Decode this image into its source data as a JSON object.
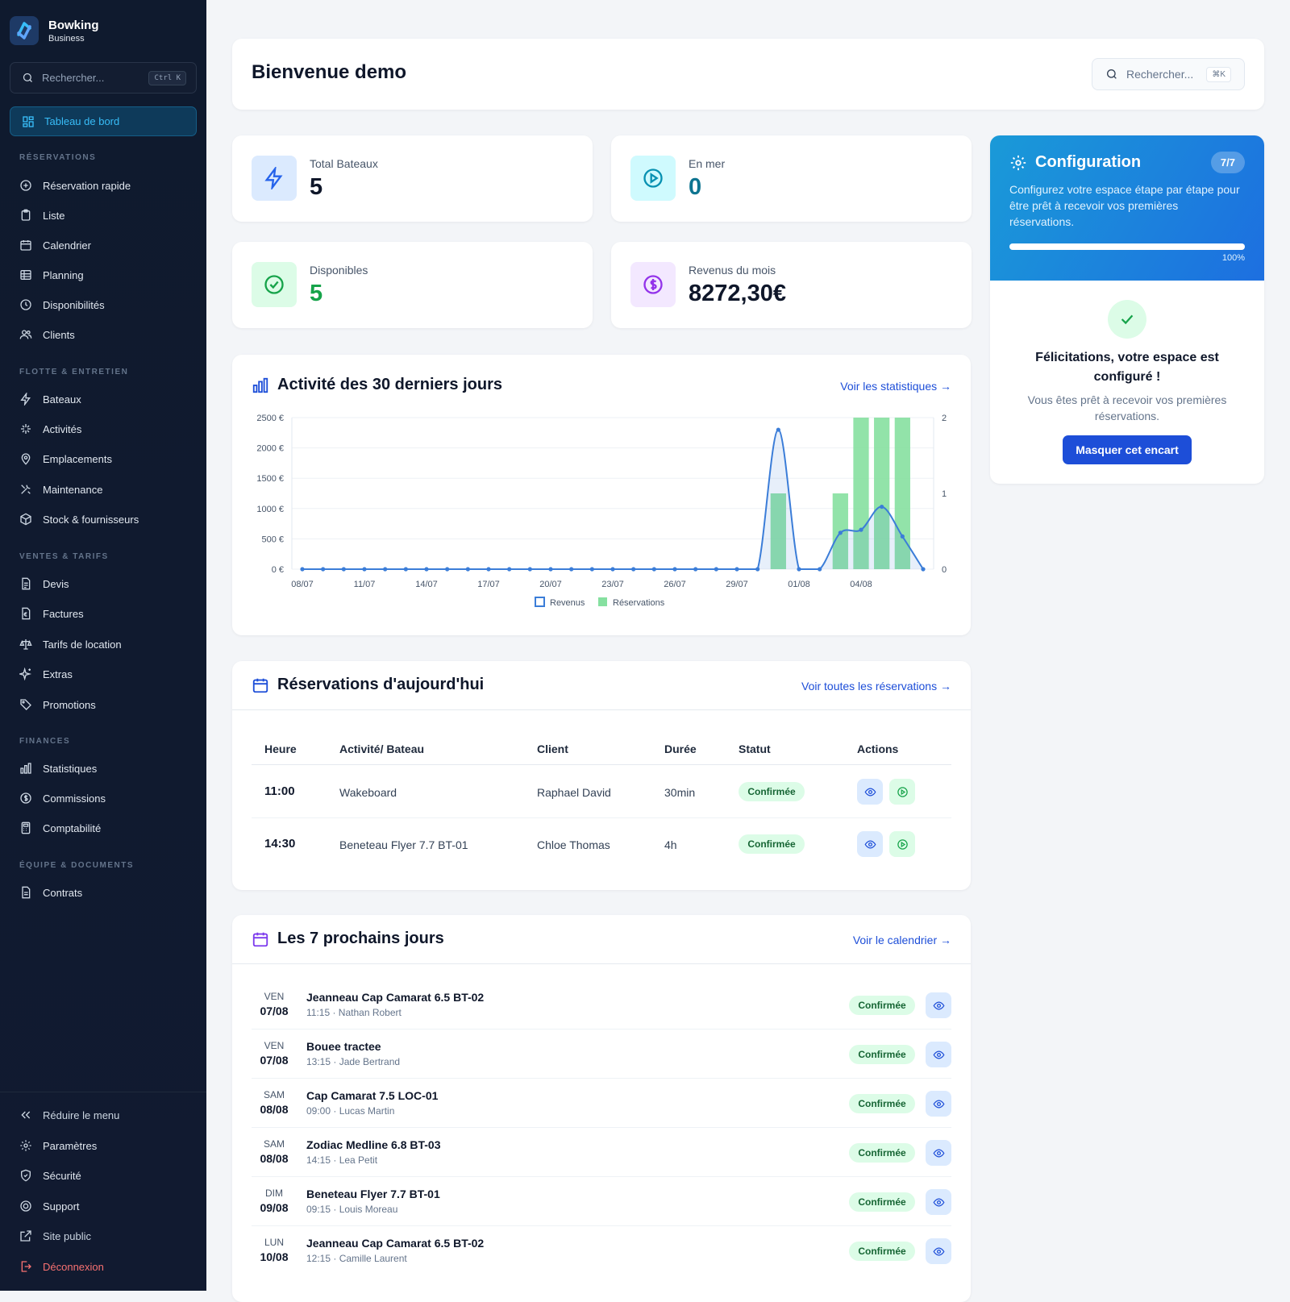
{
  "brand": {
    "name": "Bowking",
    "subtitle": "Business"
  },
  "sidebar": {
    "search_placeholder": "Rechercher...",
    "search_shortcut": "Ctrl K",
    "active_item": "Tableau de bord",
    "sections": {
      "reservations": "RÉSERVATIONS",
      "flotte": "FLOTTE & ENTRETIEN",
      "ventes": "VENTES & TARIFS",
      "finances": "FINANCES",
      "equipe": "ÉQUIPE & DOCUMENTS"
    },
    "items": {
      "reservation_rapide": "Réservation rapide",
      "liste": "Liste",
      "calendrier": "Calendrier",
      "planning": "Planning",
      "disponibilites": "Disponibilités",
      "clients": "Clients",
      "bateaux": "Bateaux",
      "activites": "Activités",
      "emplacements": "Emplacements",
      "maintenance": "Maintenance",
      "stock": "Stock & fournisseurs",
      "devis": "Devis",
      "factures": "Factures",
      "tarifs": "Tarifs de location",
      "extras": "Extras",
      "promotions": "Promotions",
      "statistiques": "Statistiques",
      "commissions": "Commissions",
      "comptabilite": "Comptabilité",
      "contrats": "Contrats"
    },
    "bottom": {
      "reduire": "Réduire le menu",
      "parametres": "Paramètres",
      "securite": "Sécurité",
      "support": "Support",
      "site_public": "Site public",
      "deconnexion": "Déconnexion"
    }
  },
  "header": {
    "title": "Bienvenue demo",
    "search_placeholder": "Rechercher...",
    "search_shortcut": "⌘K"
  },
  "stats": {
    "total_bateaux": {
      "label": "Total Bateaux",
      "value": "5"
    },
    "en_mer": {
      "label": "En mer",
      "value": "0"
    },
    "disponibles": {
      "label": "Disponibles",
      "value": "5"
    },
    "revenus": {
      "label": "Revenus du mois",
      "value": "8272,30€"
    }
  },
  "activity": {
    "title": "Activité des 30 derniers jours",
    "link": "Voir les statistiques →"
  },
  "chart_data": {
    "type": "bar",
    "title": "Activité des 30 derniers jours",
    "categories": [
      "08/07",
      "09/07",
      "10/07",
      "11/07",
      "12/07",
      "13/07",
      "14/07",
      "15/07",
      "16/07",
      "17/07",
      "18/07",
      "19/07",
      "20/07",
      "21/07",
      "22/07",
      "23/07",
      "24/07",
      "25/07",
      "26/07",
      "27/07",
      "28/07",
      "29/07",
      "30/07",
      "31/07",
      "01/08",
      "02/08",
      "03/08",
      "04/08",
      "05/08",
      "06/08",
      "07/08"
    ],
    "tick_labels": [
      "08/07",
      "11/07",
      "14/07",
      "17/07",
      "20/07",
      "23/07",
      "26/07",
      "29/07",
      "01/08",
      "04/08"
    ],
    "y_ticks_left": [
      "2500 €",
      "2000 €",
      "1500 €",
      "1000 €",
      "500 €",
      "0 €"
    ],
    "y_ticks_right": [
      "2",
      "1",
      "0"
    ],
    "ylim_left": [
      0,
      2500
    ],
    "ylim_right": [
      0,
      2
    ],
    "series": [
      {
        "name": "Revenus",
        "type": "line",
        "axis": "left",
        "color": "#3b7dd8",
        "values": [
          0,
          0,
          0,
          0,
          0,
          0,
          0,
          0,
          0,
          0,
          0,
          0,
          0,
          0,
          0,
          0,
          0,
          0,
          0,
          0,
          0,
          0,
          0,
          2300,
          0,
          0,
          600,
          650,
          1030,
          540,
          0
        ]
      },
      {
        "name": "Réservations",
        "type": "bar",
        "axis": "right",
        "color": "#86e0a0",
        "values": [
          0,
          0,
          0,
          0,
          0,
          0,
          0,
          0,
          0,
          0,
          0,
          0,
          0,
          0,
          0,
          0,
          0,
          0,
          0,
          0,
          0,
          0,
          0,
          1,
          0,
          0,
          1,
          2,
          2,
          2,
          0
        ]
      }
    ],
    "legend_placement": "bottom-center",
    "grid": true
  },
  "today": {
    "title": "Réservations d'aujourd'hui",
    "link": "Voir toutes les réservations →",
    "headers": [
      "Heure",
      "Activité/ Bateau",
      "Client",
      "Durée",
      "Statut",
      "Actions"
    ],
    "rows": [
      {
        "heure": "11:00",
        "activite": "Wakeboard",
        "client": "Raphael David",
        "duree": "30min",
        "statut": "Confirmée"
      },
      {
        "heure": "14:30",
        "activite": "Beneteau Flyer 7.7 BT-01",
        "client": "Chloe Thomas",
        "duree": "4h",
        "statut": "Confirmée"
      }
    ]
  },
  "next7": {
    "title": "Les 7 prochains jours",
    "link": "Voir le calendrier →",
    "items": [
      {
        "dow": "VEN",
        "date": "07/08",
        "title": "Jeanneau Cap Camarat 6.5 BT-02",
        "sub": "11:15 · Nathan Robert",
        "statut": "Confirmée"
      },
      {
        "dow": "VEN",
        "date": "07/08",
        "title": "Bouee tractee",
        "sub": "13:15 · Jade Bertrand",
        "statut": "Confirmée"
      },
      {
        "dow": "SAM",
        "date": "08/08",
        "title": "Cap Camarat 7.5 LOC-01",
        "sub": "09:00 · Lucas Martin",
        "statut": "Confirmée"
      },
      {
        "dow": "SAM",
        "date": "08/08",
        "title": "Zodiac Medline 6.8 BT-03",
        "sub": "14:15 · Lea Petit",
        "statut": "Confirmée"
      },
      {
        "dow": "DIM",
        "date": "09/08",
        "title": "Beneteau Flyer 7.7 BT-01",
        "sub": "09:15 · Louis Moreau",
        "statut": "Confirmée"
      },
      {
        "dow": "LUN",
        "date": "10/08",
        "title": "Jeanneau Cap Camarat 6.5 BT-02",
        "sub": "12:15 · Camille Laurent",
        "statut": "Confirmée"
      }
    ]
  },
  "config": {
    "title": "Configuration",
    "badge": "7/7",
    "desc": "Configurez votre espace étape par étape pour être prêt à recevoir vos premières réservations.",
    "progress": 100,
    "progress_label": "100%",
    "success_title": "Félicitations, votre espace est configuré !",
    "success_desc": "Vous êtes prêt à recevoir vos premières réservations.",
    "button": "Masquer cet encart"
  }
}
